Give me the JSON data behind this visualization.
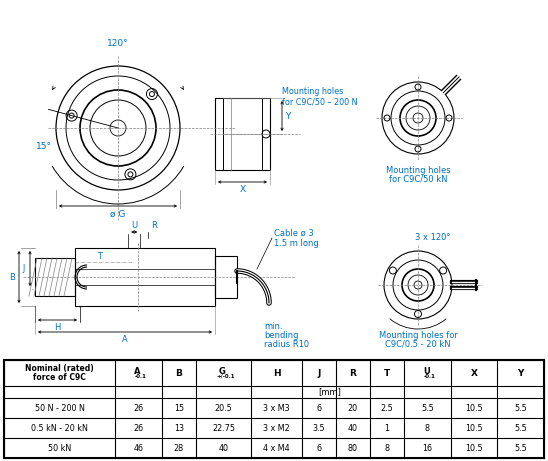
{
  "background_color": "#ffffff",
  "line_color": "#000000",
  "dim_color": "#0070C0",
  "table_rows": [
    [
      "50 N - 200 N",
      "26",
      "15",
      "20.5",
      "3 x M3",
      "6",
      "20",
      "2.5",
      "5.5",
      "10.5",
      "5.5"
    ],
    [
      "0.5 kN - 20 kN",
      "26",
      "13",
      "22.75",
      "3 x M2",
      "3.5",
      "40",
      "1",
      "8",
      "10.5",
      "5.5"
    ],
    [
      "50 kN",
      "46",
      "28",
      "40",
      "4 x M4",
      "6",
      "80",
      "8",
      "16",
      "10.5",
      "5.5"
    ]
  ],
  "figsize": [
    5.48,
    4.61
  ],
  "dpi": 100
}
